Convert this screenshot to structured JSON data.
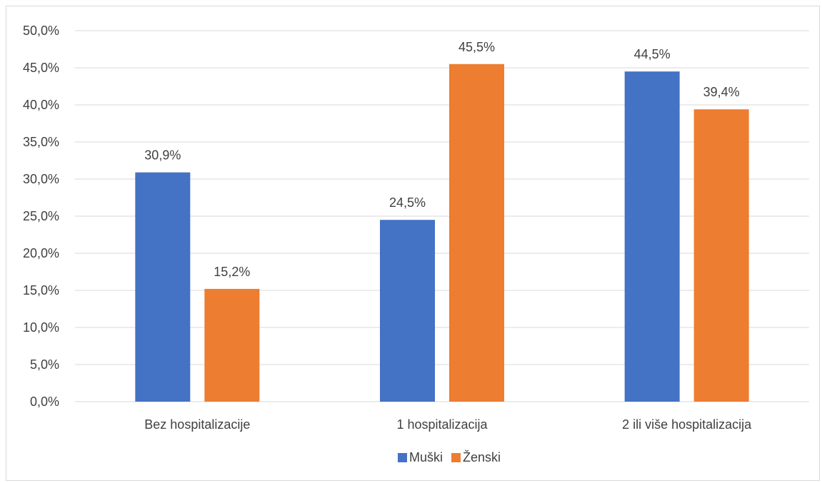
{
  "chart_data": {
    "type": "bar",
    "title": "",
    "xlabel": "",
    "ylabel": "",
    "categories": [
      "Bez hospitalizacije",
      "1 hospitalizacija",
      "2 ili više hospitalizacija"
    ],
    "series": [
      {
        "name": "Muški",
        "color": "#4472c4",
        "values": [
          30.9,
          24.5,
          44.5
        ],
        "labels": [
          "30,9%",
          "24,5%",
          "44,5%"
        ]
      },
      {
        "name": "Ženski",
        "color": "#ed7d31",
        "values": [
          15.2,
          45.5,
          39.4
        ],
        "labels": [
          "15,2%",
          "45,5%",
          "39,4%"
        ]
      }
    ],
    "ylim": [
      0,
      50
    ],
    "yticks": [
      0,
      5,
      10,
      15,
      20,
      25,
      30,
      35,
      40,
      45,
      50
    ],
    "ytick_labels": [
      "0,0%",
      "5,0%",
      "10,0%",
      "15,0%",
      "20,0%",
      "25,0%",
      "30,0%",
      "35,0%",
      "40,0%",
      "45,0%",
      "50,0%"
    ],
    "grid": true,
    "legend": "bottom-center"
  }
}
